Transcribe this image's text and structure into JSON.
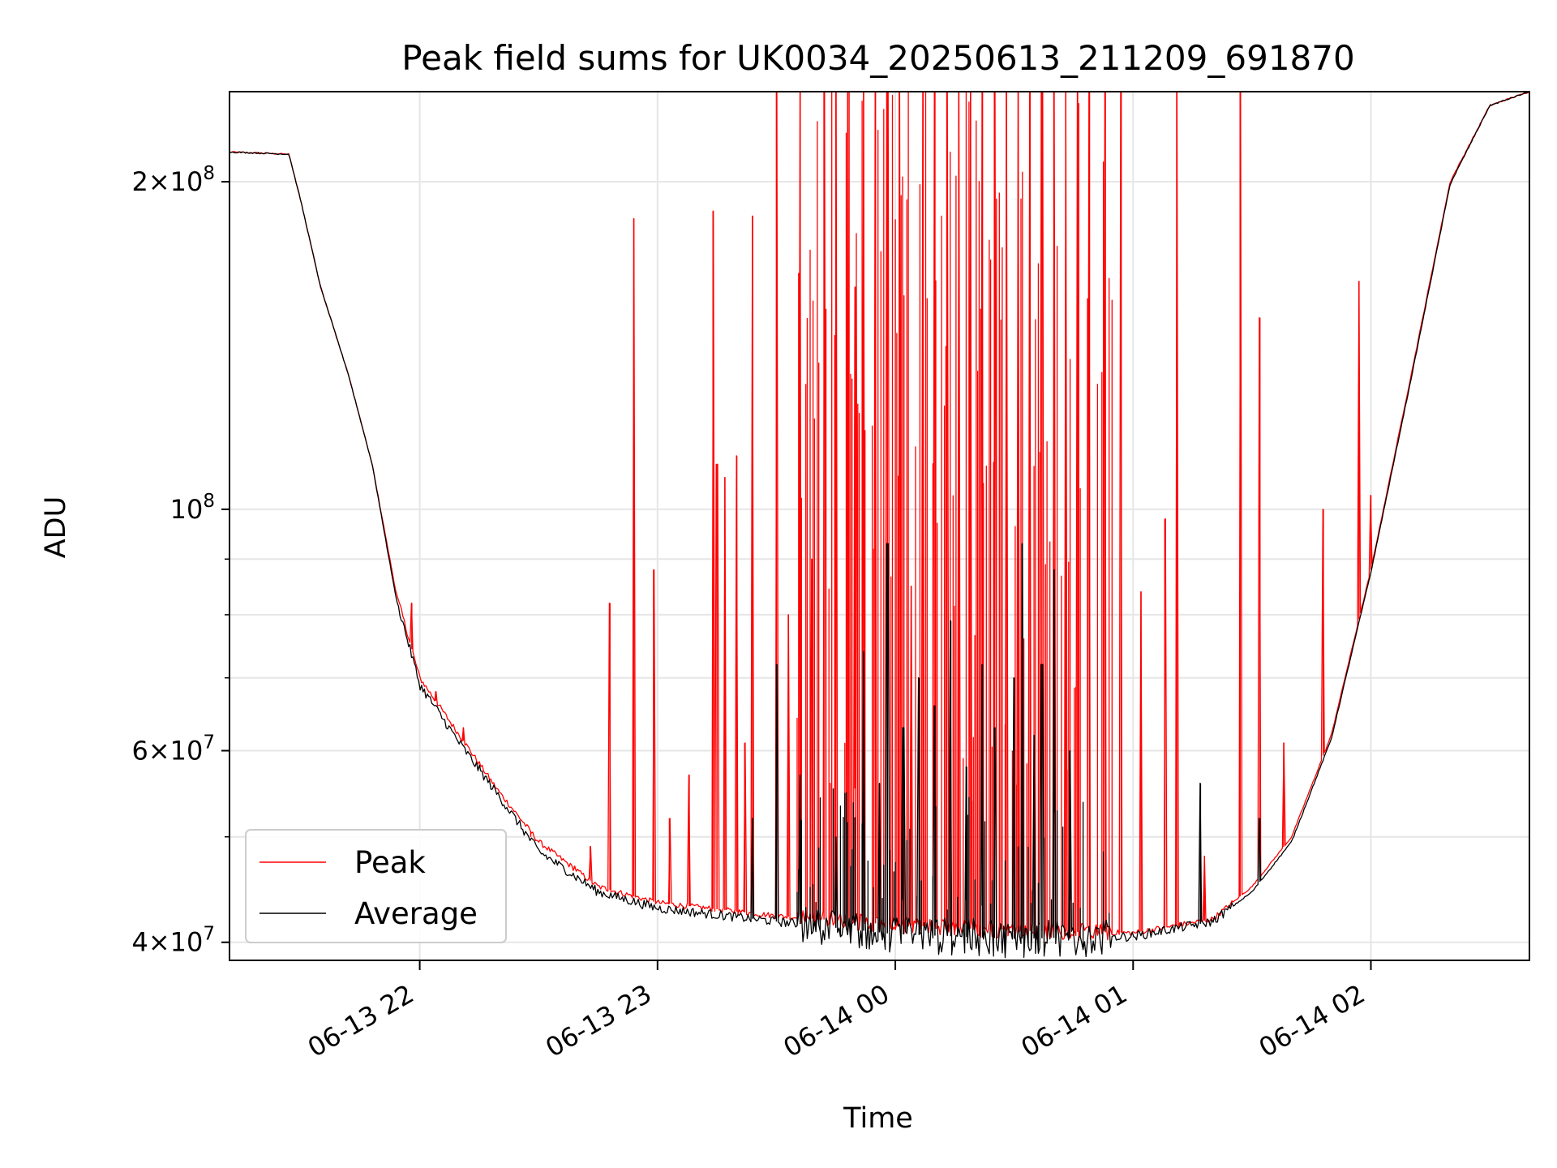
{
  "chart_data": {
    "type": "line",
    "title": "Peak field sums for UK0034_20250613_211209_691870",
    "xlabel": "Time",
    "ylabel": "ADU",
    "yscale": "log",
    "ylim": [
      38500000,
      242000000
    ],
    "xlim": [
      "2025-06-13 21:12",
      "2025-06-14 02:40"
    ],
    "grid": true,
    "legend_position": "lower-left",
    "x_ticks": [
      "06-13 22",
      "06-13 23",
      "06-14 00",
      "06-14 01",
      "06-14 02"
    ],
    "y_ticks": [
      {
        "value": 40000000,
        "mantissa": "4",
        "exponent": "7"
      },
      {
        "value": 60000000,
        "mantissa": "6",
        "exponent": "7"
      },
      {
        "value": 100000000,
        "mantissa": "",
        "exponent": "8"
      },
      {
        "value": 200000000,
        "mantissa": "2",
        "exponent": "8"
      }
    ],
    "series": [
      {
        "name": "Peak",
        "color": "#ff0000",
        "baseline": [
          [
            "2025-06-13 21:12",
            213000000
          ],
          [
            "2025-06-13 21:27",
            212000000
          ],
          [
            "2025-06-13 21:30",
            192000000
          ],
          [
            "2025-06-13 21:35",
            160000000
          ],
          [
            "2025-06-13 21:42",
            133000000
          ],
          [
            "2025-06-13 21:48",
            110000000
          ],
          [
            "2025-06-13 21:54",
            84000000
          ],
          [
            "2025-06-13 22:00",
            70000000
          ],
          [
            "2025-06-13 22:10",
            62000000
          ],
          [
            "2025-06-13 22:20",
            55000000
          ],
          [
            "2025-06-13 22:30",
            49500000
          ],
          [
            "2025-06-13 22:45",
            45000000
          ],
          [
            "2025-06-13 23:00",
            43500000
          ],
          [
            "2025-06-13 23:30",
            42300000
          ],
          [
            "2025-06-14 00:00",
            41500000
          ],
          [
            "2025-06-14 00:30",
            41000000
          ],
          [
            "2025-06-14 01:00",
            40800000
          ],
          [
            "2025-06-14 01:20",
            42000000
          ],
          [
            "2025-06-14 01:30",
            45000000
          ],
          [
            "2025-06-14 01:40",
            50000000
          ],
          [
            "2025-06-14 01:50",
            62000000
          ],
          [
            "2025-06-14 02:00",
            88000000
          ],
          [
            "2025-06-14 02:10",
            132000000
          ],
          [
            "2025-06-14 02:20",
            200000000
          ],
          [
            "2025-06-14 02:30",
            235000000
          ],
          [
            "2025-06-14 02:40",
            242000000
          ]
        ],
        "spikes": [
          [
            "2025-06-13 21:58",
            82000000
          ],
          [
            "2025-06-13 22:04",
            68000000
          ],
          [
            "2025-06-13 22:11",
            63000000
          ],
          [
            "2025-06-13 22:28",
            50000000
          ],
          [
            "2025-06-13 22:39",
            47000000
          ],
          [
            "2025-06-13 22:43",
            49000000
          ],
          [
            "2025-06-13 22:48",
            82000000
          ],
          [
            "2025-06-13 22:54",
            185000000
          ],
          [
            "2025-06-13 22:59",
            88000000
          ],
          [
            "2025-06-13 23:03",
            52000000
          ],
          [
            "2025-06-13 23:08",
            57000000
          ],
          [
            "2025-06-13 23:14",
            188000000
          ],
          [
            "2025-06-13 23:15",
            110000000
          ],
          [
            "2025-06-13 23:17",
            107000000
          ],
          [
            "2025-06-13 23:20",
            112000000
          ],
          [
            "2025-06-13 23:22",
            61000000
          ],
          [
            "2025-06-13 23:24",
            186000000
          ],
          [
            "2025-06-13 23:30",
            242000000
          ],
          [
            "2025-06-13 23:33",
            80000000
          ],
          [
            "2025-06-13 23:36",
            242000000
          ],
          [
            "2025-06-13 23:39",
            90000000
          ],
          [
            "2025-06-13 23:42",
            242000000
          ],
          [
            "2025-06-13 23:45",
            242000000
          ],
          [
            "2025-06-13 23:48",
            242000000
          ],
          [
            "2025-06-13 23:50",
            160000000
          ],
          [
            "2025-06-13 23:52",
            242000000
          ],
          [
            "2025-06-13 23:55",
            242000000
          ],
          [
            "2025-06-13 23:58",
            242000000
          ],
          [
            "2025-06-14 00:01",
            242000000
          ],
          [
            "2025-06-14 00:04",
            85000000
          ],
          [
            "2025-06-14 00:07",
            242000000
          ],
          [
            "2025-06-14 00:10",
            242000000
          ],
          [
            "2025-06-14 00:13",
            242000000
          ],
          [
            "2025-06-14 00:16",
            242000000
          ],
          [
            "2025-06-14 00:19",
            242000000
          ],
          [
            "2025-06-14 00:22",
            242000000
          ],
          [
            "2025-06-14 00:25",
            242000000
          ],
          [
            "2025-06-14 00:25",
            79000000
          ],
          [
            "2025-06-14 00:28",
            242000000
          ],
          [
            "2025-06-14 00:31",
            242000000
          ],
          [
            "2025-06-14 00:34",
            242000000
          ],
          [
            "2025-06-14 00:37",
            242000000
          ],
          [
            "2025-06-14 00:40",
            242000000
          ],
          [
            "2025-06-14 00:43",
            242000000
          ],
          [
            "2025-06-14 00:46",
            242000000
          ],
          [
            "2025-06-14 00:49",
            242000000
          ],
          [
            "2025-06-14 00:53",
            242000000
          ],
          [
            "2025-06-14 00:57",
            242000000
          ],
          [
            "2025-06-14 01:02",
            84000000
          ],
          [
            "2025-06-14 01:08",
            98000000
          ],
          [
            "2025-06-14 01:11",
            242000000
          ],
          [
            "2025-06-14 01:18",
            48000000
          ],
          [
            "2025-06-14 01:27",
            242000000
          ],
          [
            "2025-06-14 01:32",
            150000000
          ],
          [
            "2025-06-14 01:38",
            61000000
          ],
          [
            "2025-06-14 01:48",
            100000000
          ],
          [
            "2025-06-14 01:57",
            162000000
          ],
          [
            "2025-06-14 02:00",
            103000000
          ]
        ]
      },
      {
        "name": "Average",
        "color": "#000000",
        "baseline": [
          [
            "2025-06-13 21:12",
            213000000
          ],
          [
            "2025-06-13 21:27",
            212000000
          ],
          [
            "2025-06-13 21:30",
            192000000
          ],
          [
            "2025-06-13 21:35",
            160000000
          ],
          [
            "2025-06-13 21:42",
            133000000
          ],
          [
            "2025-06-13 21:48",
            110000000
          ],
          [
            "2025-06-13 21:54",
            83000000
          ],
          [
            "2025-06-13 22:00",
            69000000
          ],
          [
            "2025-06-13 22:10",
            61000000
          ],
          [
            "2025-06-13 22:20",
            54500000
          ],
          [
            "2025-06-13 22:30",
            48500000
          ],
          [
            "2025-06-13 22:45",
            44500000
          ],
          [
            "2025-06-13 23:00",
            43000000
          ],
          [
            "2025-06-13 23:30",
            41800000
          ],
          [
            "2025-06-14 00:00",
            40700000
          ],
          [
            "2025-06-14 00:30",
            40300000
          ],
          [
            "2025-06-14 01:00",
            40500000
          ],
          [
            "2025-06-14 01:20",
            41800000
          ],
          [
            "2025-06-14 01:30",
            44500000
          ],
          [
            "2025-06-14 01:40",
            49500000
          ],
          [
            "2025-06-14 01:50",
            61500000
          ],
          [
            "2025-06-14 02:00",
            87500000
          ],
          [
            "2025-06-14 02:10",
            131000000
          ],
          [
            "2025-06-14 02:20",
            199000000
          ],
          [
            "2025-06-14 02:30",
            235000000
          ],
          [
            "2025-06-14 02:40",
            242000000
          ]
        ],
        "spikes": [
          [
            "2025-06-13 23:24",
            52000000
          ],
          [
            "2025-06-13 23:30",
            72000000
          ],
          [
            "2025-06-13 23:36",
            57000000
          ],
          [
            "2025-06-13 23:45",
            50000000
          ],
          [
            "2025-06-13 23:52",
            74000000
          ],
          [
            "2025-06-13 23:56",
            56000000
          ],
          [
            "2025-06-13 23:58",
            93000000
          ],
          [
            "2025-06-14 00:02",
            63000000
          ],
          [
            "2025-06-14 00:06",
            70000000
          ],
          [
            "2025-06-14 00:10",
            66000000
          ],
          [
            "2025-06-14 00:14",
            79000000
          ],
          [
            "2025-06-14 00:18",
            58000000
          ],
          [
            "2025-06-14 00:22",
            72000000
          ],
          [
            "2025-06-14 00:25",
            63000000
          ],
          [
            "2025-06-14 00:30",
            70000000
          ],
          [
            "2025-06-14 00:32",
            93000000
          ],
          [
            "2025-06-14 00:35",
            62000000
          ],
          [
            "2025-06-14 00:37",
            72000000
          ],
          [
            "2025-06-14 00:40",
            88000000
          ],
          [
            "2025-06-14 00:44",
            60000000
          ],
          [
            "2025-06-14 01:17",
            56000000
          ],
          [
            "2025-06-14 01:32",
            52000000
          ]
        ]
      }
    ]
  }
}
